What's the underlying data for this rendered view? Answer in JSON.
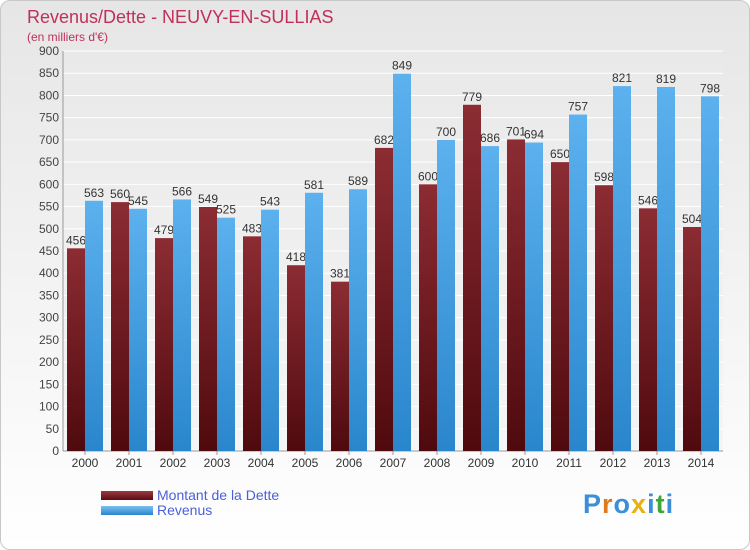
{
  "chart_data": {
    "type": "bar",
    "title": "Revenus/Dette - NEUVY-EN-SULLIAS",
    "subtitle": "(en milliers d'€)",
    "categories": [
      "2000",
      "2001",
      "2002",
      "2003",
      "2004",
      "2005",
      "2006",
      "2007",
      "2008",
      "2009",
      "2010",
      "2011",
      "2012",
      "2013",
      "2014"
    ],
    "series": [
      {
        "name": "Montant de la Dette",
        "color": "#7a1f26",
        "values": [
          456,
          560,
          479,
          549,
          483,
          418,
          381,
          682,
          600,
          779,
          701,
          650,
          598,
          546,
          504
        ]
      },
      {
        "name": "Revenus",
        "color": "#3d9be0",
        "values": [
          563,
          545,
          566,
          525,
          543,
          581,
          589,
          849,
          700,
          686,
          694,
          757,
          821,
          819,
          798
        ]
      }
    ],
    "ylim": [
      0,
      900
    ],
    "yticks": [
      0,
      50,
      100,
      150,
      200,
      250,
      300,
      350,
      400,
      450,
      500,
      550,
      600,
      650,
      700,
      750,
      800,
      850,
      900
    ],
    "grid": true,
    "legend_position": "bottom-left"
  },
  "logo": {
    "letters": [
      "P",
      "r",
      "o",
      "x",
      "i",
      "t",
      "i"
    ],
    "colors": [
      "#3a8fd8",
      "#e07a1f",
      "#3a8fd8",
      "#e8b20e",
      "#3a8fd8",
      "#3fa835",
      "#3a8fd8"
    ]
  }
}
